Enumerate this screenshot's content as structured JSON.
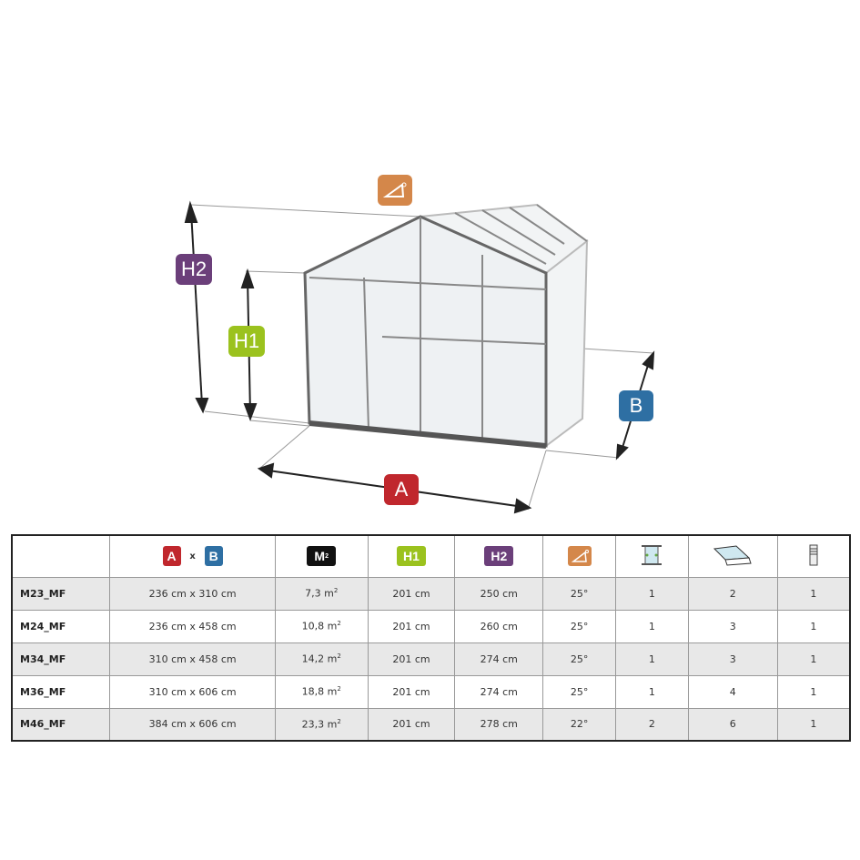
{
  "diagram": {
    "labels": {
      "a": "A",
      "b": "B",
      "h1": "H1",
      "h2": "H2",
      "angle_icon": "roof-angle-icon"
    }
  },
  "colors": {
    "a": "#c0272d",
    "b": "#2e6fa3",
    "h1": "#9bc21e",
    "h2": "#6b3f7a",
    "angle": "#d4874a",
    "m2": "#111111"
  },
  "table": {
    "headers": {
      "a": "A",
      "x": "x",
      "b": "B",
      "m2": "M",
      "m2_sup": "2",
      "h1": "H1",
      "h2": "H2",
      "icons": [
        "roof-angle-icon",
        "door-icon",
        "roof-window-icon",
        "louvre-vent-icon"
      ]
    },
    "rows": [
      {
        "name": "M23_MF",
        "dims": "236 cm x 310 cm",
        "area": "7,3 m",
        "h1": "201 cm",
        "h2": "250 cm",
        "angle": "25°",
        "doors": "1",
        "windows": "2",
        "louvres": "1"
      },
      {
        "name": "M24_MF",
        "dims": "236 cm x 458 cm",
        "area": "10,8 m",
        "h1": "201 cm",
        "h2": "260 cm",
        "angle": "25°",
        "doors": "1",
        "windows": "3",
        "louvres": "1"
      },
      {
        "name": "M34_MF",
        "dims": "310 cm x 458 cm",
        "area": "14,2 m",
        "h1": "201 cm",
        "h2": "274 cm",
        "angle": "25°",
        "doors": "1",
        "windows": "3",
        "louvres": "1"
      },
      {
        "name": "M36_MF",
        "dims": "310 cm x 606 cm",
        "area": "18,8 m",
        "h1": "201 cm",
        "h2": "274 cm",
        "angle": "25°",
        "doors": "1",
        "windows": "4",
        "louvres": "1"
      },
      {
        "name": "M46_MF",
        "dims": "384 cm x 606 cm",
        "area": "23,3 m",
        "h1": "201 cm",
        "h2": "278 cm",
        "angle": "22°",
        "doors": "2",
        "windows": "6",
        "louvres": "1"
      }
    ],
    "area_sup": "2"
  }
}
